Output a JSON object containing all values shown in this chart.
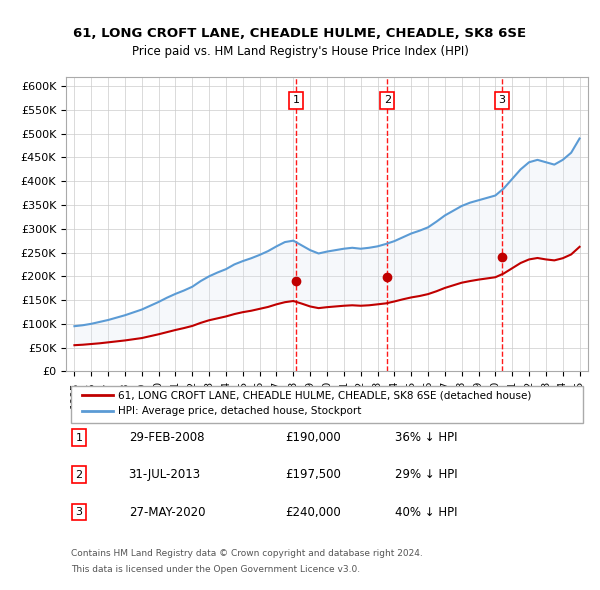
{
  "title1": "61, LONG CROFT LANE, CHEADLE HULME, CHEADLE, SK8 6SE",
  "title2": "Price paid vs. HM Land Registry's House Price Index (HPI)",
  "ylabel_ticks": [
    "£0",
    "£50K",
    "£100K",
    "£150K",
    "£200K",
    "£250K",
    "£300K",
    "£350K",
    "£400K",
    "£450K",
    "£500K",
    "£550K",
    "£600K"
  ],
  "ytick_values": [
    0,
    50000,
    100000,
    150000,
    200000,
    250000,
    300000,
    350000,
    400000,
    450000,
    500000,
    550000,
    600000
  ],
  "ylim": [
    0,
    620000
  ],
  "xlim_start": 1994.5,
  "xlim_end": 2025.5,
  "xtick_years": [
    1995,
    1996,
    1997,
    1998,
    1999,
    2000,
    2001,
    2002,
    2003,
    2004,
    2005,
    2006,
    2007,
    2008,
    2009,
    2010,
    2011,
    2012,
    2013,
    2014,
    2015,
    2016,
    2017,
    2018,
    2019,
    2020,
    2021,
    2022,
    2023,
    2024,
    2025
  ],
  "hpi_color": "#5b9bd5",
  "price_color": "#c00000",
  "sale_color": "#c00000",
  "marker_fill": "#c00000",
  "sale_dates": [
    2008.165,
    2013.578,
    2020.401
  ],
  "sale_prices": [
    190000,
    197500,
    240000
  ],
  "sale_labels": [
    "1",
    "2",
    "3"
  ],
  "vline_color": "#ff0000",
  "shade_color": "#dce6f1",
  "legend_entries": [
    "61, LONG CROFT LANE, CHEADLE HULME, CHEADLE, SK8 6SE (detached house)",
    "HPI: Average price, detached house, Stockport"
  ],
  "table_rows": [
    {
      "num": "1",
      "date": "29-FEB-2008",
      "price": "£190,000",
      "pct": "36% ↓ HPI"
    },
    {
      "num": "2",
      "date": "31-JUL-2013",
      "price": "£197,500",
      "pct": "29% ↓ HPI"
    },
    {
      "num": "3",
      "date": "27-MAY-2020",
      "price": "£240,000",
      "pct": "40% ↓ HPI"
    }
  ],
  "footnote1": "Contains HM Land Registry data © Crown copyright and database right 2024.",
  "footnote2": "This data is licensed under the Open Government Licence v3.0.",
  "hpi_x": [
    1995,
    1995.5,
    1996,
    1996.5,
    1997,
    1997.5,
    1998,
    1998.5,
    1999,
    1999.5,
    2000,
    2000.5,
    2001,
    2001.5,
    2002,
    2002.5,
    2003,
    2003.5,
    2004,
    2004.5,
    2005,
    2005.5,
    2006,
    2006.5,
    2007,
    2007.5,
    2008,
    2008.5,
    2009,
    2009.5,
    2010,
    2010.5,
    2011,
    2011.5,
    2012,
    2012.5,
    2013,
    2013.5,
    2014,
    2014.5,
    2015,
    2015.5,
    2016,
    2016.5,
    2017,
    2017.5,
    2018,
    2018.5,
    2019,
    2019.5,
    2020,
    2020.5,
    2021,
    2021.5,
    2022,
    2022.5,
    2023,
    2023.5,
    2024,
    2024.5,
    2025
  ],
  "hpi_y": [
    95000,
    97000,
    100000,
    104000,
    108000,
    113000,
    118000,
    124000,
    130000,
    138000,
    146000,
    155000,
    163000,
    170000,
    178000,
    190000,
    200000,
    208000,
    215000,
    225000,
    232000,
    238000,
    245000,
    253000,
    263000,
    272000,
    275000,
    265000,
    255000,
    248000,
    252000,
    255000,
    258000,
    260000,
    258000,
    260000,
    263000,
    268000,
    274000,
    282000,
    290000,
    296000,
    303000,
    315000,
    328000,
    338000,
    348000,
    355000,
    360000,
    365000,
    370000,
    385000,
    405000,
    425000,
    440000,
    445000,
    440000,
    435000,
    445000,
    460000,
    490000
  ],
  "price_x": [
    1995,
    1995.5,
    1996,
    1996.5,
    1997,
    1997.5,
    1998,
    1998.5,
    1999,
    1999.5,
    2000,
    2000.5,
    2001,
    2001.5,
    2002,
    2002.5,
    2003,
    2003.5,
    2004,
    2004.5,
    2005,
    2005.5,
    2006,
    2006.5,
    2007,
    2007.5,
    2008,
    2008.5,
    2009,
    2009.5,
    2010,
    2010.5,
    2011,
    2011.5,
    2012,
    2012.5,
    2013,
    2013.5,
    2014,
    2014.5,
    2015,
    2015.5,
    2016,
    2016.5,
    2017,
    2017.5,
    2018,
    2018.5,
    2019,
    2019.5,
    2020,
    2020.5,
    2021,
    2021.5,
    2022,
    2022.5,
    2023,
    2023.5,
    2024,
    2024.5,
    2025
  ],
  "price_y": [
    55000,
    56000,
    57500,
    59000,
    61000,
    63000,
    65000,
    67500,
    70000,
    74000,
    78000,
    82500,
    87000,
    91000,
    95500,
    102000,
    107500,
    111500,
    115500,
    120500,
    124500,
    127500,
    131500,
    135500,
    141000,
    145500,
    148000,
    142500,
    136500,
    133000,
    135000,
    136500,
    138000,
    139000,
    138000,
    139000,
    141000,
    143000,
    147000,
    151500,
    155500,
    158500,
    162500,
    168500,
    175500,
    181000,
    186500,
    190000,
    193000,
    195500,
    198000,
    206000,
    217000,
    228000,
    235500,
    238500,
    235500,
    233500,
    238000,
    246000,
    262000
  ]
}
